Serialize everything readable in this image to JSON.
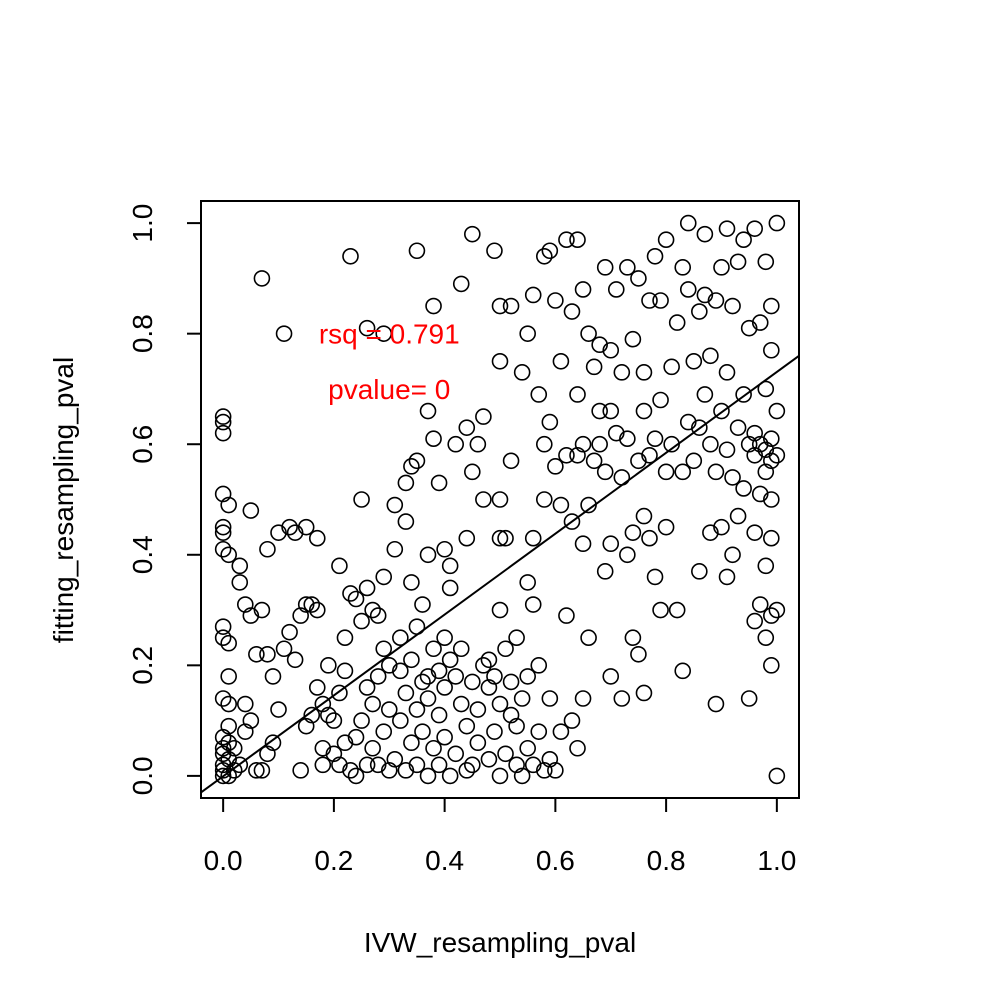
{
  "chart_data": {
    "type": "scatter",
    "title": "",
    "xlabel": "IVW_resampling_pval",
    "ylabel": "fitting_resampling_pval",
    "xlim": [
      -0.04,
      1.04
    ],
    "ylim": [
      -0.04,
      1.04
    ],
    "xticks": [
      0.0,
      0.2,
      0.4,
      0.6,
      0.8,
      1.0
    ],
    "yticks": [
      0.0,
      0.2,
      0.4,
      0.6,
      0.8,
      1.0
    ],
    "xtick_labels": [
      "0.0",
      "0.2",
      "0.4",
      "0.6",
      "0.8",
      "1.0"
    ],
    "ytick_labels": [
      "0.0",
      "0.2",
      "0.4",
      "0.6",
      "0.8",
      "1.0"
    ],
    "grid": false,
    "marker": "open-circle",
    "fit_line": {
      "x": [
        -0.04,
        1.04
      ],
      "y": [
        -0.03,
        0.76
      ]
    },
    "annotations": [
      {
        "text": "rsq = 0.791",
        "x": 0.3,
        "y": 0.8,
        "color": "#ff0000"
      },
      {
        "text": "pvalue= 0",
        "x": 0.3,
        "y": 0.7,
        "color": "#ff0000"
      }
    ],
    "points": [
      [
        0.0,
        0.0
      ],
      [
        0.0,
        0.01
      ],
      [
        0.0,
        0.02
      ],
      [
        0.0,
        0.04
      ],
      [
        0.0,
        0.05
      ],
      [
        0.0,
        0.07
      ],
      [
        0.0,
        0.14
      ],
      [
        0.0,
        0.25
      ],
      [
        0.0,
        0.27
      ],
      [
        0.0,
        0.41
      ],
      [
        0.0,
        0.44
      ],
      [
        0.0,
        0.45
      ],
      [
        0.0,
        0.51
      ],
      [
        0.0,
        0.62
      ],
      [
        0.0,
        0.64
      ],
      [
        0.0,
        0.65
      ],
      [
        0.01,
        0.0
      ],
      [
        0.01,
        0.03
      ],
      [
        0.01,
        0.06
      ],
      [
        0.01,
        0.09
      ],
      [
        0.01,
        0.13
      ],
      [
        0.01,
        0.18
      ],
      [
        0.01,
        0.24
      ],
      [
        0.01,
        0.4
      ],
      [
        0.01,
        0.49
      ],
      [
        0.02,
        0.01
      ],
      [
        0.02,
        0.05
      ],
      [
        0.03,
        0.02
      ],
      [
        0.03,
        0.35
      ],
      [
        0.03,
        0.38
      ],
      [
        0.04,
        0.08
      ],
      [
        0.04,
        0.13
      ],
      [
        0.04,
        0.31
      ],
      [
        0.05,
        0.1
      ],
      [
        0.05,
        0.29
      ],
      [
        0.05,
        0.48
      ],
      [
        0.06,
        0.01
      ],
      [
        0.06,
        0.22
      ],
      [
        0.07,
        0.01
      ],
      [
        0.07,
        0.3
      ],
      [
        0.07,
        0.9
      ],
      [
        0.08,
        0.04
      ],
      [
        0.08,
        0.22
      ],
      [
        0.08,
        0.41
      ],
      [
        0.09,
        0.06
      ],
      [
        0.09,
        0.18
      ],
      [
        0.1,
        0.12
      ],
      [
        0.1,
        0.44
      ],
      [
        0.11,
        0.23
      ],
      [
        0.11,
        0.8
      ],
      [
        0.12,
        0.26
      ],
      [
        0.12,
        0.45
      ],
      [
        0.13,
        0.21
      ],
      [
        0.13,
        0.44
      ],
      [
        0.14,
        0.29
      ],
      [
        0.14,
        0.01
      ],
      [
        0.15,
        0.09
      ],
      [
        0.15,
        0.31
      ],
      [
        0.15,
        0.45
      ],
      [
        0.16,
        0.11
      ],
      [
        0.16,
        0.31
      ],
      [
        0.17,
        0.16
      ],
      [
        0.17,
        0.3
      ],
      [
        0.17,
        0.43
      ],
      [
        0.18,
        0.02
      ],
      [
        0.18,
        0.05
      ],
      [
        0.18,
        0.13
      ],
      [
        0.19,
        0.11
      ],
      [
        0.19,
        0.2
      ],
      [
        0.2,
        0.04
      ],
      [
        0.2,
        0.1
      ],
      [
        0.21,
        0.02
      ],
      [
        0.21,
        0.15
      ],
      [
        0.21,
        0.38
      ],
      [
        0.22,
        0.06
      ],
      [
        0.22,
        0.19
      ],
      [
        0.22,
        0.25
      ],
      [
        0.23,
        0.01
      ],
      [
        0.23,
        0.33
      ],
      [
        0.23,
        0.94
      ],
      [
        0.24,
        0.0
      ],
      [
        0.24,
        0.07
      ],
      [
        0.24,
        0.32
      ],
      [
        0.25,
        0.1
      ],
      [
        0.25,
        0.28
      ],
      [
        0.25,
        0.5
      ],
      [
        0.26,
        0.02
      ],
      [
        0.26,
        0.16
      ],
      [
        0.26,
        0.34
      ],
      [
        0.26,
        0.81
      ],
      [
        0.27,
        0.05
      ],
      [
        0.27,
        0.13
      ],
      [
        0.27,
        0.3
      ],
      [
        0.28,
        0.02
      ],
      [
        0.28,
        0.18
      ],
      [
        0.28,
        0.29
      ],
      [
        0.29,
        0.08
      ],
      [
        0.29,
        0.23
      ],
      [
        0.29,
        0.36
      ],
      [
        0.29,
        0.8
      ],
      [
        0.3,
        0.01
      ],
      [
        0.3,
        0.12
      ],
      [
        0.3,
        0.2
      ],
      [
        0.31,
        0.03
      ],
      [
        0.31,
        0.41
      ],
      [
        0.31,
        0.49
      ],
      [
        0.32,
        0.1
      ],
      [
        0.32,
        0.19
      ],
      [
        0.32,
        0.25
      ],
      [
        0.33,
        0.01
      ],
      [
        0.33,
        0.15
      ],
      [
        0.33,
        0.46
      ],
      [
        0.33,
        0.53
      ],
      [
        0.34,
        0.06
      ],
      [
        0.34,
        0.21
      ],
      [
        0.34,
        0.35
      ],
      [
        0.34,
        0.56
      ],
      [
        0.35,
        0.02
      ],
      [
        0.35,
        0.12
      ],
      [
        0.35,
        0.27
      ],
      [
        0.35,
        0.57
      ],
      [
        0.35,
        0.95
      ],
      [
        0.36,
        0.08
      ],
      [
        0.36,
        0.17
      ],
      [
        0.36,
        0.31
      ],
      [
        0.37,
        0.0
      ],
      [
        0.37,
        0.14
      ],
      [
        0.37,
        0.18
      ],
      [
        0.37,
        0.4
      ],
      [
        0.37,
        0.66
      ],
      [
        0.38,
        0.05
      ],
      [
        0.38,
        0.23
      ],
      [
        0.38,
        0.61
      ],
      [
        0.38,
        0.85
      ],
      [
        0.39,
        0.02
      ],
      [
        0.39,
        0.11
      ],
      [
        0.39,
        0.19
      ],
      [
        0.39,
        0.53
      ],
      [
        0.4,
        0.07
      ],
      [
        0.4,
        0.16
      ],
      [
        0.4,
        0.25
      ],
      [
        0.4,
        0.41
      ],
      [
        0.41,
        0.0
      ],
      [
        0.41,
        0.21
      ],
      [
        0.41,
        0.34
      ],
      [
        0.41,
        0.38
      ],
      [
        0.42,
        0.04
      ],
      [
        0.42,
        0.18
      ],
      [
        0.42,
        0.6
      ],
      [
        0.43,
        0.13
      ],
      [
        0.43,
        0.23
      ],
      [
        0.43,
        0.89
      ],
      [
        0.44,
        0.01
      ],
      [
        0.44,
        0.09
      ],
      [
        0.44,
        0.43
      ],
      [
        0.44,
        0.63
      ],
      [
        0.45,
        0.02
      ],
      [
        0.45,
        0.17
      ],
      [
        0.45,
        0.55
      ],
      [
        0.45,
        0.98
      ],
      [
        0.46,
        0.06
      ],
      [
        0.46,
        0.12
      ],
      [
        0.46,
        0.6
      ],
      [
        0.47,
        0.2
      ],
      [
        0.47,
        0.5
      ],
      [
        0.47,
        0.65
      ],
      [
        0.48,
        0.03
      ],
      [
        0.48,
        0.16
      ],
      [
        0.48,
        0.21
      ],
      [
        0.49,
        0.08
      ],
      [
        0.49,
        0.18
      ],
      [
        0.49,
        0.95
      ],
      [
        0.5,
        0.0
      ],
      [
        0.5,
        0.13
      ],
      [
        0.5,
        0.3
      ],
      [
        0.5,
        0.43
      ],
      [
        0.5,
        0.5
      ],
      [
        0.5,
        0.75
      ],
      [
        0.5,
        0.85
      ],
      [
        0.51,
        0.04
      ],
      [
        0.51,
        0.23
      ],
      [
        0.51,
        0.43
      ],
      [
        0.52,
        0.11
      ],
      [
        0.52,
        0.17
      ],
      [
        0.52,
        0.57
      ],
      [
        0.52,
        0.85
      ],
      [
        0.53,
        0.02
      ],
      [
        0.53,
        0.09
      ],
      [
        0.53,
        0.25
      ],
      [
        0.54,
        0.0
      ],
      [
        0.54,
        0.14
      ],
      [
        0.54,
        0.73
      ],
      [
        0.55,
        0.05
      ],
      [
        0.55,
        0.18
      ],
      [
        0.55,
        0.35
      ],
      [
        0.55,
        0.8
      ],
      [
        0.56,
        0.02
      ],
      [
        0.56,
        0.31
      ],
      [
        0.56,
        0.43
      ],
      [
        0.56,
        0.87
      ],
      [
        0.57,
        0.08
      ],
      [
        0.57,
        0.2
      ],
      [
        0.57,
        0.69
      ],
      [
        0.58,
        0.01
      ],
      [
        0.58,
        0.5
      ],
      [
        0.58,
        0.6
      ],
      [
        0.58,
        0.94
      ],
      [
        0.59,
        0.03
      ],
      [
        0.59,
        0.14
      ],
      [
        0.59,
        0.64
      ],
      [
        0.59,
        0.95
      ],
      [
        0.6,
        0.01
      ],
      [
        0.6,
        0.56
      ],
      [
        0.6,
        0.86
      ],
      [
        0.61,
        0.08
      ],
      [
        0.61,
        0.49
      ],
      [
        0.61,
        0.75
      ],
      [
        0.62,
        0.29
      ],
      [
        0.62,
        0.58
      ],
      [
        0.62,
        0.97
      ],
      [
        0.63,
        0.1
      ],
      [
        0.63,
        0.46
      ],
      [
        0.63,
        0.84
      ],
      [
        0.64,
        0.05
      ],
      [
        0.64,
        0.58
      ],
      [
        0.64,
        0.69
      ],
      [
        0.64,
        0.97
      ],
      [
        0.65,
        0.14
      ],
      [
        0.65,
        0.42
      ],
      [
        0.65,
        0.6
      ],
      [
        0.65,
        0.88
      ],
      [
        0.66,
        0.25
      ],
      [
        0.66,
        0.49
      ],
      [
        0.66,
        0.8
      ],
      [
        0.67,
        0.57
      ],
      [
        0.67,
        0.74
      ],
      [
        0.68,
        0.6
      ],
      [
        0.68,
        0.66
      ],
      [
        0.68,
        0.78
      ],
      [
        0.69,
        0.37
      ],
      [
        0.69,
        0.55
      ],
      [
        0.69,
        0.92
      ],
      [
        0.7,
        0.18
      ],
      [
        0.7,
        0.42
      ],
      [
        0.7,
        0.66
      ],
      [
        0.7,
        0.77
      ],
      [
        0.71,
        0.62
      ],
      [
        0.71,
        0.88
      ],
      [
        0.72,
        0.14
      ],
      [
        0.72,
        0.54
      ],
      [
        0.72,
        0.73
      ],
      [
        0.73,
        0.4
      ],
      [
        0.73,
        0.61
      ],
      [
        0.73,
        0.92
      ],
      [
        0.74,
        0.25
      ],
      [
        0.74,
        0.44
      ],
      [
        0.74,
        0.79
      ],
      [
        0.75,
        0.22
      ],
      [
        0.75,
        0.57
      ],
      [
        0.75,
        0.9
      ],
      [
        0.76,
        0.15
      ],
      [
        0.76,
        0.47
      ],
      [
        0.76,
        0.66
      ],
      [
        0.76,
        0.73
      ],
      [
        0.77,
        0.43
      ],
      [
        0.77,
        0.58
      ],
      [
        0.77,
        0.86
      ],
      [
        0.78,
        0.36
      ],
      [
        0.78,
        0.61
      ],
      [
        0.78,
        0.94
      ],
      [
        0.79,
        0.3
      ],
      [
        0.79,
        0.68
      ],
      [
        0.79,
        0.86
      ],
      [
        0.8,
        0.45
      ],
      [
        0.8,
        0.55
      ],
      [
        0.8,
        0.97
      ],
      [
        0.81,
        0.6
      ],
      [
        0.81,
        0.74
      ],
      [
        0.82,
        0.3
      ],
      [
        0.82,
        0.82
      ],
      [
        0.83,
        0.19
      ],
      [
        0.83,
        0.55
      ],
      [
        0.83,
        0.92
      ],
      [
        0.84,
        0.64
      ],
      [
        0.84,
        0.88
      ],
      [
        0.84,
        1.0
      ],
      [
        0.85,
        0.57
      ],
      [
        0.85,
        0.75
      ],
      [
        0.86,
        0.37
      ],
      [
        0.86,
        0.63
      ],
      [
        0.86,
        0.84
      ],
      [
        0.87,
        0.69
      ],
      [
        0.87,
        0.87
      ],
      [
        0.87,
        0.98
      ],
      [
        0.88,
        0.44
      ],
      [
        0.88,
        0.6
      ],
      [
        0.88,
        0.76
      ],
      [
        0.89,
        0.13
      ],
      [
        0.89,
        0.55
      ],
      [
        0.89,
        0.86
      ],
      [
        0.9,
        0.45
      ],
      [
        0.9,
        0.66
      ],
      [
        0.9,
        0.92
      ],
      [
        0.91,
        0.36
      ],
      [
        0.91,
        0.59
      ],
      [
        0.91,
        0.73
      ],
      [
        0.91,
        0.99
      ],
      [
        0.92,
        0.4
      ],
      [
        0.92,
        0.54
      ],
      [
        0.92,
        0.85
      ],
      [
        0.93,
        0.47
      ],
      [
        0.93,
        0.63
      ],
      [
        0.93,
        0.93
      ],
      [
        0.94,
        0.52
      ],
      [
        0.94,
        0.69
      ],
      [
        0.94,
        0.97
      ],
      [
        0.95,
        0.14
      ],
      [
        0.95,
        0.6
      ],
      [
        0.95,
        0.81
      ],
      [
        0.96,
        0.28
      ],
      [
        0.96,
        0.44
      ],
      [
        0.96,
        0.58
      ],
      [
        0.96,
        0.62
      ],
      [
        0.96,
        0.99
      ],
      [
        0.97,
        0.31
      ],
      [
        0.97,
        0.51
      ],
      [
        0.97,
        0.6
      ],
      [
        0.97,
        0.82
      ],
      [
        0.98,
        0.25
      ],
      [
        0.98,
        0.38
      ],
      [
        0.98,
        0.55
      ],
      [
        0.98,
        0.59
      ],
      [
        0.98,
        0.7
      ],
      [
        0.98,
        0.93
      ],
      [
        0.99,
        0.2
      ],
      [
        0.99,
        0.29
      ],
      [
        0.99,
        0.43
      ],
      [
        0.99,
        0.5
      ],
      [
        0.99,
        0.57
      ],
      [
        0.99,
        0.61
      ],
      [
        0.99,
        0.77
      ],
      [
        0.99,
        0.85
      ],
      [
        1.0,
        0.0
      ],
      [
        1.0,
        0.3
      ],
      [
        1.0,
        0.58
      ],
      [
        1.0,
        0.66
      ],
      [
        1.0,
        1.0
      ]
    ]
  }
}
